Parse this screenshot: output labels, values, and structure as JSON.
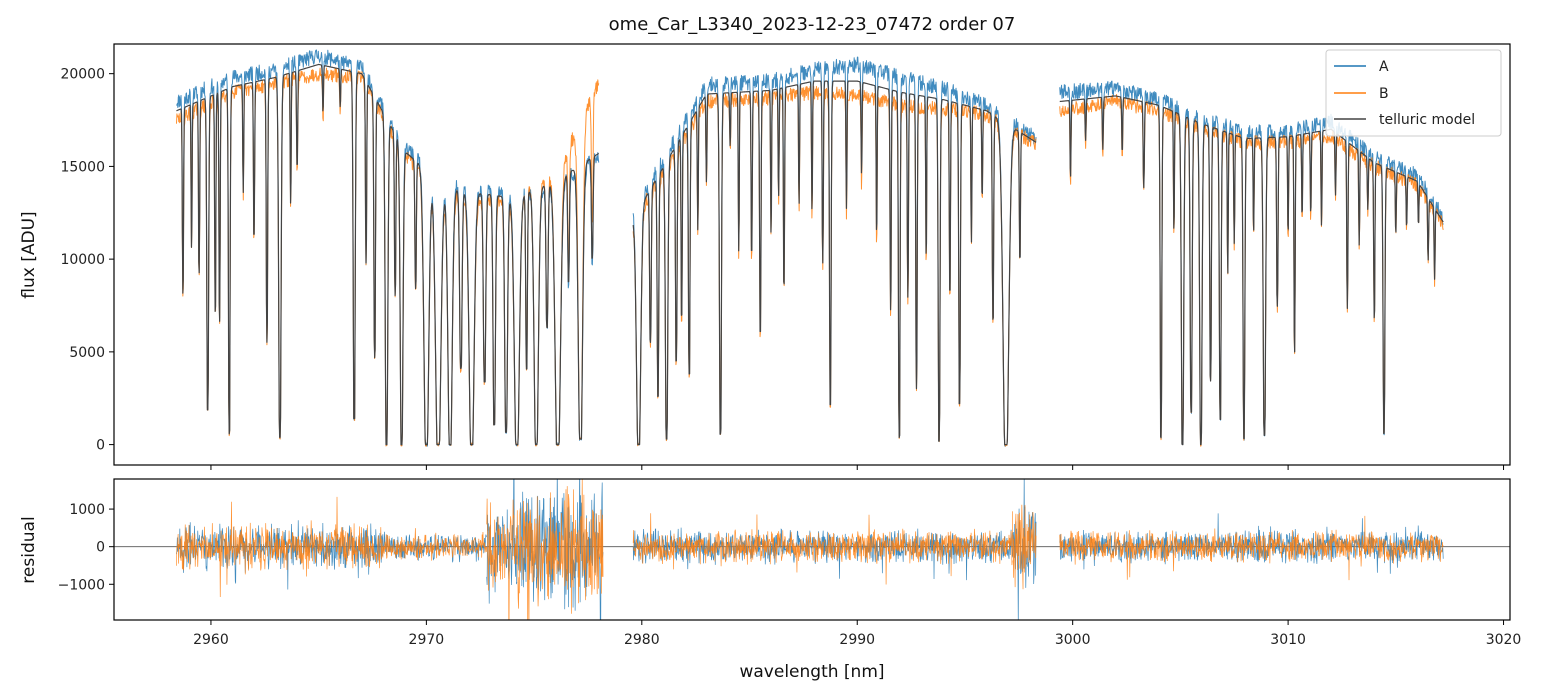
{
  "chart_data": [
    {
      "panel": "spectrum",
      "type": "line",
      "title": "ome_Car_L3340_2023-12-23_07472  order 07",
      "xlabel": "",
      "ylabel": "flux [ADU]",
      "xlim": [
        2955.5,
        3020.3
      ],
      "ylim": [
        -1100,
        21600
      ],
      "xticks": [
        2960,
        2970,
        2980,
        2990,
        3000,
        3010,
        3020
      ],
      "yticks": [
        0,
        5000,
        10000,
        15000,
        20000
      ],
      "ytick_labels": [
        "0",
        "5000",
        "10000",
        "15000",
        "20000"
      ],
      "legend": {
        "position": "top-right",
        "entries": [
          "A",
          "B",
          "telluric model"
        ]
      },
      "series": [
        {
          "name": "A",
          "color": "#1f77b4",
          "description": "continuum level (ADU) sampled at segment knots",
          "segments": [
            {
              "x": [
                2958.4,
                2961,
                2963,
                2965,
                2967,
                2969,
                2971,
                2974,
                2976,
                2978
              ],
              "y": [
                18500,
                19800,
                20200,
                21000,
                20300,
                16000,
                14000,
                13500,
                14000,
                15500
              ]
            },
            {
              "x": [
                2979.6,
                2983,
                2986,
                2988,
                2990,
                2992,
                2994,
                2996,
                2998.3
              ],
              "y": [
                12500,
                19400,
                19600,
                20200,
                20500,
                19800,
                19200,
                18300,
                16500
              ]
            },
            {
              "x": [
                2999.4,
                3002,
                3004,
                3006,
                3008,
                3010,
                3012,
                3014,
                3016,
                3017.2
              ],
              "y": [
                19000,
                19200,
                18600,
                17600,
                16800,
                16900,
                17400,
                15500,
                14500,
                12200
              ]
            }
          ]
        },
        {
          "name": "B",
          "color": "#ff7f0e",
          "description": "continuum level (ADU) sampled at segment knots",
          "segments": [
            {
              "x": [
                2958.4,
                2961,
                2963,
                2965,
                2967,
                2969,
                2971,
                2974,
                2976,
                2978
              ],
              "y": [
                17500,
                19000,
                19500,
                20000,
                19800,
                15500,
                13500,
                13000,
                14500,
                19500
              ]
            },
            {
              "x": [
                2979.6,
                2983,
                2986,
                2988,
                2990,
                2992,
                2994,
                2996,
                2998.3
              ],
              "y": [
                12000,
                18500,
                18700,
                19000,
                18800,
                18300,
                18100,
                17800,
                16200
              ]
            },
            {
              "x": [
                2999.4,
                3002,
                3004,
                3006,
                3008,
                3010,
                3012,
                3014,
                3016,
                3017.2
              ],
              "y": [
                18000,
                18500,
                18000,
                17000,
                16300,
                16300,
                16600,
                15000,
                14000,
                11800
              ]
            }
          ]
        },
        {
          "name": "telluric model",
          "color": "#444444",
          "description": "continuum level (ADU) sampled at segment knots",
          "segments": [
            {
              "x": [
                2958.4,
                2961,
                2963,
                2965,
                2967,
                2969,
                2971,
                2974,
                2976,
                2978
              ],
              "y": [
                18000,
                19300,
                19800,
                20500,
                20000,
                15800,
                13800,
                13300,
                14200,
                15700
              ]
            },
            {
              "x": [
                2979.6,
                2983,
                2986,
                2988,
                2990,
                2992,
                2994,
                2996,
                2998.3
              ],
              "y": [
                12200,
                18900,
                19100,
                19600,
                19600,
                19000,
                18600,
                18000,
                16300
              ]
            },
            {
              "x": [
                2999.4,
                3002,
                3004,
                3006,
                3008,
                3010,
                3012,
                3014,
                3016,
                3017.2
              ],
              "y": [
                18500,
                18800,
                18300,
                17300,
                16500,
                16600,
                17000,
                15200,
                14200,
                12000
              ]
            }
          ]
        }
      ],
      "absorption_lines": {
        "description": "wavelength (nm), depth fraction (0-1), width (nm)",
        "lines": [
          [
            2958.7,
            0.55,
            0.06
          ],
          [
            2959.1,
            0.42,
            0.05
          ],
          [
            2959.45,
            0.5,
            0.06
          ],
          [
            2959.85,
            0.9,
            0.09
          ],
          [
            2960.2,
            0.62,
            0.06
          ],
          [
            2960.4,
            0.65,
            0.06
          ],
          [
            2960.85,
            0.97,
            0.08
          ],
          [
            2961.5,
            0.3,
            0.05
          ],
          [
            2962.0,
            0.42,
            0.06
          ],
          [
            2962.6,
            0.72,
            0.07
          ],
          [
            2963.2,
            0.98,
            0.12
          ],
          [
            2963.7,
            0.35,
            0.05
          ],
          [
            2964.0,
            0.25,
            0.06
          ],
          [
            2965.2,
            0.12,
            0.05
          ],
          [
            2966.0,
            0.1,
            0.05
          ],
          [
            2966.65,
            0.93,
            0.1
          ],
          [
            2967.2,
            0.5,
            0.06
          ],
          [
            2967.6,
            0.75,
            0.08
          ],
          [
            2968.15,
            1.0,
            0.13
          ],
          [
            2968.55,
            0.52,
            0.07
          ],
          [
            2968.85,
            1.0,
            0.14
          ],
          [
            2969.5,
            0.45,
            0.07
          ],
          [
            2970.0,
            1.0,
            0.25
          ],
          [
            2970.55,
            1.0,
            0.28
          ],
          [
            2971.1,
            1.0,
            0.22
          ],
          [
            2971.6,
            0.7,
            0.12
          ],
          [
            2972.1,
            1.0,
            0.26
          ],
          [
            2972.7,
            0.75,
            0.12
          ],
          [
            2973.15,
            0.92,
            0.12
          ],
          [
            2973.7,
            0.95,
            0.14
          ],
          [
            2974.2,
            1.0,
            0.26
          ],
          [
            2974.65,
            0.7,
            0.08
          ],
          [
            2975.1,
            1.0,
            0.22
          ],
          [
            2975.6,
            0.55,
            0.1
          ],
          [
            2976.1,
            1.0,
            0.28
          ],
          [
            2976.6,
            0.4,
            0.08
          ],
          [
            2977.15,
            0.98,
            0.22
          ],
          [
            2977.7,
            0.35,
            0.08
          ],
          [
            2979.85,
            1.0,
            0.22
          ],
          [
            2980.4,
            0.6,
            0.08
          ],
          [
            2980.75,
            0.82,
            0.08
          ],
          [
            2981.15,
            0.98,
            0.12
          ],
          [
            2981.6,
            0.72,
            0.08
          ],
          [
            2981.85,
            0.58,
            0.06
          ],
          [
            2982.2,
            0.78,
            0.08
          ],
          [
            2982.6,
            0.36,
            0.05
          ],
          [
            2983.0,
            0.25,
            0.05
          ],
          [
            2983.65,
            0.97,
            0.1
          ],
          [
            2984.1,
            0.15,
            0.05
          ],
          [
            2984.5,
            0.45,
            0.05
          ],
          [
            2985.1,
            0.45,
            0.06
          ],
          [
            2985.5,
            0.68,
            0.07
          ],
          [
            2986.0,
            0.4,
            0.05
          ],
          [
            2986.35,
            0.3,
            0.05
          ],
          [
            2986.6,
            0.55,
            0.06
          ],
          [
            2987.3,
            0.33,
            0.05
          ],
          [
            2987.9,
            0.35,
            0.05
          ],
          [
            2988.4,
            0.5,
            0.06
          ],
          [
            2988.75,
            0.89,
            0.08
          ],
          [
            2989.5,
            0.35,
            0.05
          ],
          [
            2990.2,
            0.25,
            0.05
          ],
          [
            2990.9,
            0.4,
            0.05
          ],
          [
            2991.55,
            0.62,
            0.06
          ],
          [
            2991.95,
            0.98,
            0.08
          ],
          [
            2992.35,
            0.58,
            0.06
          ],
          [
            2992.75,
            0.84,
            0.07
          ],
          [
            2993.2,
            0.45,
            0.05
          ],
          [
            2993.8,
            0.99,
            0.09
          ],
          [
            2994.3,
            0.55,
            0.06
          ],
          [
            2994.75,
            0.88,
            0.08
          ],
          [
            2995.3,
            0.4,
            0.05
          ],
          [
            2995.8,
            0.25,
            0.05
          ],
          [
            2996.3,
            0.62,
            0.07
          ],
          [
            2996.9,
            1.0,
            0.3
          ],
          [
            2997.55,
            0.4,
            0.06
          ],
          [
            2999.9,
            0.22,
            0.05
          ],
          [
            3000.6,
            0.12,
            0.05
          ],
          [
            3001.4,
            0.15,
            0.05
          ],
          [
            3002.3,
            0.15,
            0.05
          ],
          [
            3003.3,
            0.25,
            0.06
          ],
          [
            3004.1,
            0.98,
            0.08
          ],
          [
            3004.7,
            0.35,
            0.05
          ],
          [
            3005.1,
            1.0,
            0.12
          ],
          [
            3005.5,
            0.9,
            0.1
          ],
          [
            3005.95,
            1.0,
            0.12
          ],
          [
            3006.4,
            0.8,
            0.08
          ],
          [
            3006.85,
            0.92,
            0.09
          ],
          [
            3007.2,
            0.45,
            0.05
          ],
          [
            3007.5,
            0.35,
            0.05
          ],
          [
            3007.95,
            0.98,
            0.09
          ],
          [
            3008.4,
            0.3,
            0.05
          ],
          [
            3008.9,
            0.97,
            0.12
          ],
          [
            3009.5,
            0.55,
            0.07
          ],
          [
            3010.0,
            0.3,
            0.05
          ],
          [
            3010.3,
            0.7,
            0.06
          ],
          [
            3010.65,
            0.25,
            0.05
          ],
          [
            3011.05,
            0.25,
            0.05
          ],
          [
            3011.55,
            0.3,
            0.05
          ],
          [
            3012.2,
            0.2,
            0.05
          ],
          [
            3012.75,
            0.55,
            0.06
          ],
          [
            3013.3,
            0.32,
            0.05
          ],
          [
            3013.7,
            0.18,
            0.05
          ],
          [
            3014.0,
            0.55,
            0.06
          ],
          [
            3014.45,
            0.96,
            0.09
          ],
          [
            3015.0,
            0.22,
            0.05
          ],
          [
            3015.5,
            0.18,
            0.05
          ],
          [
            3016.05,
            0.15,
            0.05
          ],
          [
            3016.5,
            0.25,
            0.05
          ],
          [
            3016.8,
            0.3,
            0.05
          ]
        ]
      }
    },
    {
      "panel": "residual",
      "type": "line",
      "xlabel": "wavelength [nm]",
      "ylabel": "residual",
      "xlim": [
        2955.5,
        3020.3
      ],
      "ylim": [
        -1950,
        1800
      ],
      "xticks": [
        2960,
        2970,
        2980,
        2990,
        3000,
        3010,
        3020
      ],
      "xtick_labels": [
        "2960",
        "2970",
        "2980",
        "2990",
        "3000",
        "3010",
        "3020"
      ],
      "yticks": [
        -1000,
        0,
        1000
      ],
      "ytick_labels": [
        "−1000",
        "0",
        "1000"
      ],
      "zero_line": true,
      "noise_amplitude": {
        "description": "approximate residual scatter (ADU) per wavelength segment [start, end, amplitude]",
        "segments": [
          [
            2958.4,
            2968.0,
            700
          ],
          [
            2968.0,
            2972.8,
            420
          ],
          [
            2972.8,
            2974.2,
            1500
          ],
          [
            2974.2,
            2978.2,
            1900
          ],
          [
            2979.6,
            2997.2,
            520
          ],
          [
            2997.2,
            2998.3,
            1400
          ],
          [
            2999.4,
            3017.2,
            480
          ]
        ]
      },
      "series": [
        {
          "name": "A",
          "color": "#1f77b4"
        },
        {
          "name": "B",
          "color": "#ff7f0e"
        }
      ]
    }
  ]
}
